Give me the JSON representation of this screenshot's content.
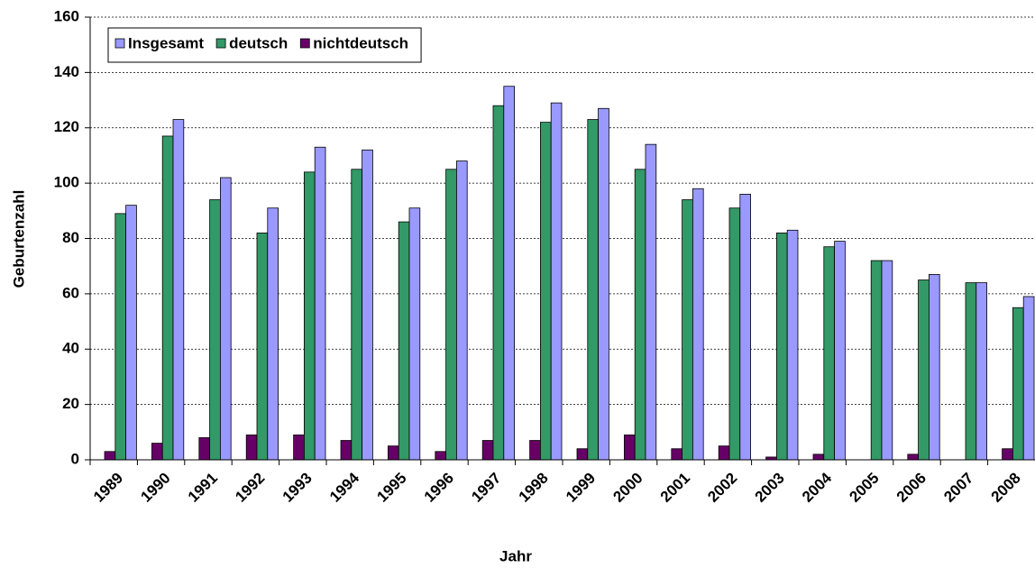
{
  "chart_data": {
    "type": "bar",
    "x_label": "Jahr",
    "y_label": "Geburtenzahl",
    "categories": [
      "1989",
      "1990",
      "1991",
      "1992",
      "1993",
      "1994",
      "1995",
      "1996",
      "1997",
      "1998",
      "1999",
      "2000",
      "2001",
      "2002",
      "2003",
      "2004",
      "2005",
      "2006",
      "2007",
      "2008"
    ],
    "series": [
      {
        "name": "Insgesamt",
        "color": "#9999ff",
        "values": [
          92,
          123,
          102,
          91,
          113,
          112,
          91,
          108,
          135,
          129,
          127,
          114,
          98,
          96,
          83,
          79,
          72,
          67,
          64,
          59
        ]
      },
      {
        "name": "deutsch",
        "color": "#339966",
        "values": [
          89,
          117,
          94,
          82,
          104,
          105,
          86,
          105,
          128,
          122,
          123,
          105,
          94,
          91,
          82,
          77,
          72,
          65,
          64,
          55
        ]
      },
      {
        "name": "nichtdeutsch",
        "color": "#660066",
        "values": [
          3,
          6,
          8,
          9,
          9,
          7,
          5,
          3,
          7,
          7,
          4,
          9,
          4,
          5,
          1,
          2,
          0,
          2,
          0,
          4
        ]
      }
    ],
    "ylim": [
      0,
      160
    ],
    "yticks": [
      0,
      20,
      40,
      60,
      80,
      100,
      120,
      140,
      160
    ],
    "grid": true,
    "legend": "top-left"
  }
}
